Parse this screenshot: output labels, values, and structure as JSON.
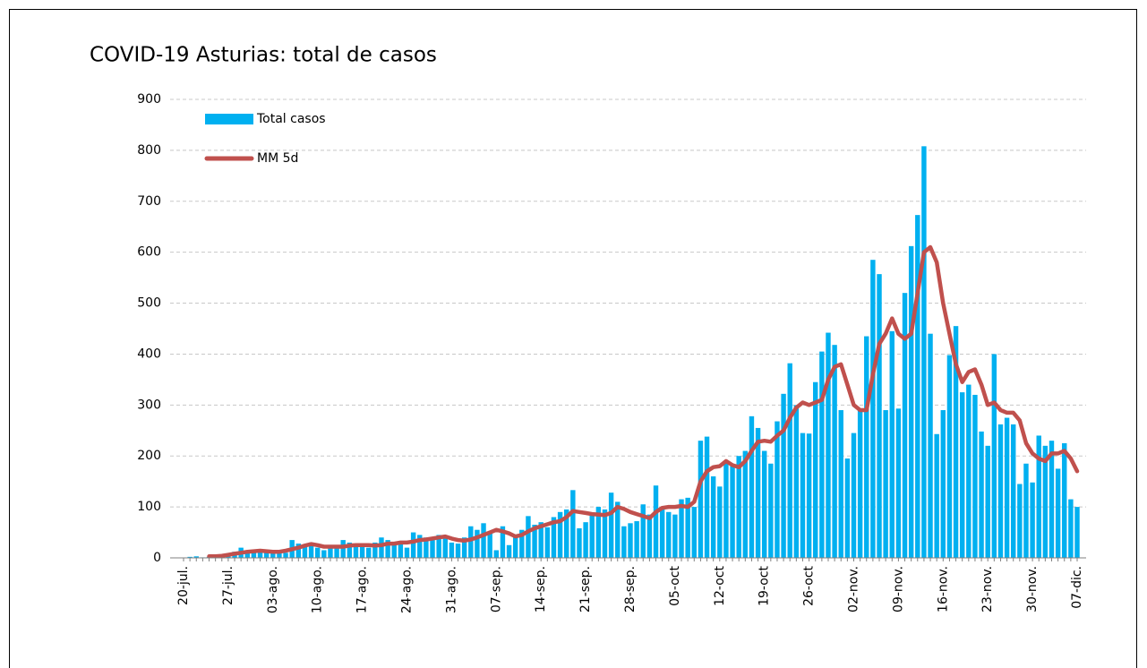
{
  "chart_data": {
    "type": "bar-line",
    "title": "COVID-19 Asturias: total de casos",
    "categories": [
      "20-jul.",
      null,
      null,
      null,
      null,
      null,
      null,
      "27-jul.",
      null,
      null,
      null,
      null,
      null,
      null,
      "03-ago.",
      null,
      null,
      null,
      null,
      null,
      null,
      "10-ago.",
      null,
      null,
      null,
      null,
      null,
      null,
      "17-ago.",
      null,
      null,
      null,
      null,
      null,
      null,
      "24-ago.",
      null,
      null,
      null,
      null,
      null,
      null,
      "31-ago.",
      null,
      null,
      null,
      null,
      null,
      null,
      "07-sep.",
      null,
      null,
      null,
      null,
      null,
      null,
      "14-sep.",
      null,
      null,
      null,
      null,
      null,
      null,
      "21-sep.",
      null,
      null,
      null,
      null,
      null,
      null,
      "28-sep.",
      null,
      null,
      null,
      null,
      null,
      null,
      "05-oct",
      null,
      null,
      null,
      null,
      null,
      null,
      "12-oct",
      null,
      null,
      null,
      null,
      null,
      null,
      "19-oct",
      null,
      null,
      null,
      null,
      null,
      null,
      "26-oct",
      null,
      null,
      null,
      null,
      null,
      null,
      "02-nov.",
      null,
      null,
      null,
      null,
      null,
      null,
      "09-nov.",
      null,
      null,
      null,
      null,
      null,
      null,
      "16-nov.",
      null,
      null,
      null,
      null,
      null,
      null,
      "23-nov.",
      null,
      null,
      null,
      null,
      null,
      null,
      "30-nov.",
      null,
      null,
      null,
      null,
      null,
      null,
      "07-dic."
    ],
    "series": [
      {
        "name": "Total casos",
        "type": "bar",
        "color": "#00b0f0",
        "values": [
          0,
          2,
          3,
          1,
          2,
          3,
          4,
          8,
          12,
          20,
          10,
          14,
          12,
          10,
          15,
          12,
          10,
          35,
          28,
          25,
          30,
          20,
          15,
          22,
          25,
          35,
          30,
          25,
          28,
          20,
          30,
          40,
          35,
          25,
          30,
          20,
          50,
          45,
          40,
          35,
          45,
          38,
          30,
          28,
          40,
          62,
          55,
          68,
          50,
          15,
          62,
          25,
          40,
          55,
          82,
          65,
          70,
          60,
          80,
          90,
          95,
          133,
          58,
          70,
          85,
          100,
          95,
          128,
          110,
          62,
          68,
          72,
          105,
          85,
          142,
          100,
          90,
          85,
          115,
          118,
          100,
          230,
          238,
          160,
          140,
          190,
          180,
          200,
          210,
          278,
          255,
          210,
          185,
          268,
          322,
          382,
          300,
          245,
          244,
          345,
          405,
          442,
          418,
          290,
          195,
          245,
          290,
          435,
          585,
          557,
          290,
          445,
          293,
          520,
          612,
          673,
          808,
          440,
          243,
          290,
          398,
          455,
          325,
          340,
          320,
          248,
          220,
          400,
          262,
          275,
          262,
          145,
          185,
          148,
          240,
          220,
          230,
          175,
          225,
          115,
          100
        ]
      },
      {
        "name": "MM 5d",
        "type": "line",
        "color": "#c0504d",
        "values": [
          null,
          null,
          null,
          null,
          3,
          3,
          4,
          6,
          8,
          10,
          12,
          13,
          14,
          13,
          12,
          12,
          14,
          17,
          20,
          24,
          27,
          25,
          22,
          22,
          22,
          22,
          24,
          25,
          25,
          25,
          24,
          25,
          28,
          28,
          30,
          30,
          32,
          35,
          36,
          38,
          40,
          42,
          38,
          35,
          34,
          36,
          40,
          45,
          50,
          55,
          52,
          48,
          42,
          45,
          52,
          58,
          62,
          66,
          70,
          72,
          80,
          92,
          90,
          88,
          86,
          85,
          84,
          88,
          100,
          96,
          90,
          86,
          82,
          78,
          90,
          98,
          100,
          100,
          102,
          100,
          110,
          150,
          170,
          178,
          180,
          190,
          182,
          178,
          190,
          210,
          228,
          230,
          228,
          240,
          250,
          275,
          295,
          305,
          300,
          305,
          310,
          350,
          375,
          380,
          340,
          300,
          290,
          290,
          360,
          420,
          440,
          470,
          440,
          430,
          440,
          520,
          600,
          610,
          580,
          500,
          440,
          380,
          345,
          365,
          370,
          340,
          300,
          305,
          290,
          285,
          285,
          270,
          225,
          205,
          195,
          190,
          205,
          205,
          210,
          195,
          170
        ]
      }
    ],
    "ylim": [
      0,
      900
    ],
    "yticks": [
      0,
      100,
      200,
      300,
      400,
      500,
      600,
      700,
      800,
      900
    ],
    "grid": true
  }
}
